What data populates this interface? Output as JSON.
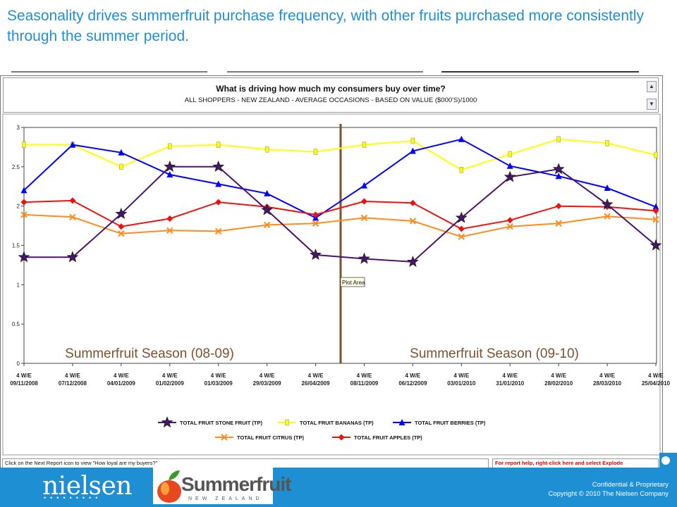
{
  "headline": "Seasonality drives summerfruit purchase frequency, with other fruits purchased more consistently through the summer period.",
  "report": {
    "title": "What is driving how much my consumers buy over time?",
    "subtitle": "ALL SHOPPERS - NEW ZEALAND - AVERAGE OCCASIONS - BASED ON VALUE ($000'S)/1000"
  },
  "chart_data": {
    "type": "line",
    "x_prefix": "4 W/E",
    "categories": [
      "09/11/2008",
      "07/12/2008",
      "04/01/2009",
      "01/02/2009",
      "01/03/2009",
      "29/03/2009",
      "26/04/2009",
      "08/11/2009",
      "06/12/2009",
      "03/01/2010",
      "31/01/2010",
      "28/02/2010",
      "28/03/2010",
      "25/04/2010"
    ],
    "ylim": [
      0,
      3
    ],
    "yticks": [
      0,
      0.5,
      1,
      1.5,
      2,
      2.5,
      3
    ],
    "ytick_labels": [
      "0",
      "0.5",
      "1",
      "1.5",
      "2",
      "2.5",
      "3"
    ],
    "grid": false,
    "legend_position": "bottom",
    "series": [
      {
        "name": "TOTAL FRUIT STONE FRUIT (TP)",
        "color": "#4b1370",
        "marker": "star",
        "values": [
          1.35,
          1.35,
          1.9,
          2.5,
          2.5,
          1.95,
          1.38,
          1.33,
          1.29,
          1.85,
          2.37,
          2.47,
          2.02,
          1.5
        ]
      },
      {
        "name": "TOTAL FRUIT BANANAS (TP)",
        "color": "#ffff00",
        "marker": "bar",
        "values": [
          2.78,
          2.78,
          2.5,
          2.76,
          2.78,
          2.72,
          2.69,
          2.78,
          2.83,
          2.46,
          2.66,
          2.85,
          2.8,
          2.65
        ]
      },
      {
        "name": "TOTAL FRUIT BERRIES (TP)",
        "color": "#0000ff",
        "marker": "triangle",
        "values": [
          2.2,
          2.78,
          2.68,
          2.4,
          2.28,
          2.16,
          1.85,
          2.26,
          2.7,
          2.85,
          2.51,
          2.38,
          2.23,
          1.99
        ]
      },
      {
        "name": "TOTAL FRUIT CITRUS (TP)",
        "color": "#ff8c1a",
        "marker": "x",
        "values": [
          1.89,
          1.86,
          1.65,
          1.69,
          1.68,
          1.76,
          1.78,
          1.85,
          1.81,
          1.61,
          1.74,
          1.78,
          1.87,
          1.83
        ]
      },
      {
        "name": "TOTAL FRUIT APPLES (TP)",
        "color": "#ee1111",
        "marker": "diamond",
        "values": [
          2.05,
          2.07,
          1.74,
          1.84,
          2.05,
          1.99,
          1.89,
          2.06,
          2.04,
          1.71,
          1.82,
          2.0,
          1.99,
          1.94
        ]
      }
    ],
    "annotations": {
      "season1": "Summerfruit Season (08-09)",
      "season2": "Summerfruit Season (09-10)",
      "tooltip": "Plot Area",
      "divider_after_index": 6
    }
  },
  "footer": {
    "left_hint": "Click on the Next Report icon to view \"How loyal are my buyers?\"",
    "right_hint": "For report help, right-click here and select Explode"
  },
  "branding": {
    "nielsen": "nielsen",
    "summerfruit": "Summerfruit",
    "summerfruit_sub": "NEW ZEALAND",
    "confidential": "Confidential & Proprietary",
    "copyright": "Copyright © 2010 The Nielsen Company"
  }
}
